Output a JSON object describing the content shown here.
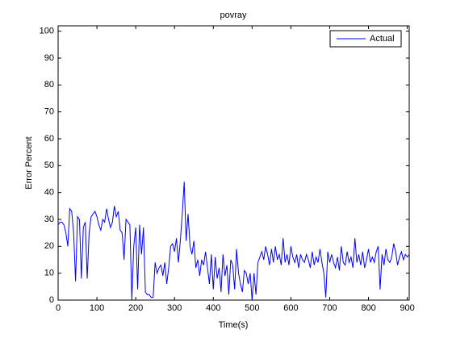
{
  "chart_data": {
    "type": "line",
    "title": "povray",
    "xlabel": "Time(s)",
    "ylabel": "Error Percent",
    "legend": "top-right",
    "xlim": [
      0,
      905
    ],
    "ylim": [
      0,
      102
    ],
    "xticks": [
      0,
      100,
      200,
      300,
      400,
      500,
      600,
      700,
      800,
      900
    ],
    "yticks": [
      0,
      10,
      20,
      30,
      40,
      50,
      60,
      70,
      80,
      90,
      100
    ],
    "x": [
      0,
      5,
      10,
      15,
      20,
      25,
      30,
      35,
      40,
      45,
      50,
      55,
      60,
      65,
      70,
      75,
      80,
      85,
      90,
      95,
      100,
      105,
      110,
      115,
      120,
      125,
      130,
      135,
      140,
      145,
      150,
      155,
      160,
      165,
      170,
      175,
      180,
      185,
      190,
      195,
      200,
      205,
      210,
      215,
      220,
      225,
      230,
      235,
      240,
      245,
      250,
      255,
      260,
      265,
      270,
      275,
      280,
      285,
      290,
      295,
      300,
      305,
      310,
      315,
      320,
      325,
      330,
      335,
      340,
      345,
      350,
      355,
      360,
      365,
      370,
      375,
      380,
      385,
      390,
      395,
      400,
      405,
      410,
      415,
      420,
      425,
      430,
      435,
      440,
      445,
      450,
      455,
      460,
      465,
      470,
      475,
      480,
      485,
      490,
      495,
      500,
      505,
      510,
      515,
      520,
      525,
      530,
      535,
      540,
      545,
      550,
      555,
      560,
      565,
      570,
      575,
      580,
      585,
      590,
      595,
      600,
      605,
      610,
      615,
      620,
      625,
      630,
      635,
      640,
      645,
      650,
      655,
      660,
      665,
      670,
      675,
      680,
      685,
      690,
      695,
      700,
      705,
      710,
      715,
      720,
      725,
      730,
      735,
      740,
      745,
      750,
      755,
      760,
      765,
      770,
      775,
      780,
      785,
      790,
      795,
      800,
      805,
      810,
      815,
      820,
      825,
      830,
      835,
      840,
      845,
      850,
      855,
      860,
      865,
      870,
      875,
      880,
      885,
      890,
      895,
      900,
      905
    ],
    "series": [
      {
        "name": "Actual",
        "color": "#0000ff",
        "values": [
          28,
          29,
          29,
          28,
          25,
          20,
          34,
          33,
          25,
          7,
          31,
          30,
          8,
          27,
          29,
          8,
          25,
          31,
          32,
          33,
          31,
          28,
          26,
          30,
          29,
          34,
          30,
          27,
          29,
          35,
          31,
          33,
          26,
          25,
          15,
          30,
          29,
          28,
          0,
          20,
          27,
          4,
          28,
          17,
          27,
          3,
          2,
          2,
          1,
          1,
          14,
          10,
          12,
          13,
          9,
          14,
          6,
          12,
          20,
          21,
          18,
          23,
          14,
          22,
          32,
          44,
          22,
          32,
          20,
          17,
          22,
          12,
          15,
          9,
          15,
          13,
          18,
          12,
          6,
          17,
          4,
          16,
          8,
          12,
          3,
          17,
          9,
          13,
          2,
          15,
          13,
          4,
          19,
          10,
          6,
          3,
          11,
          10,
          6,
          10,
          0,
          10,
          2,
          14,
          16,
          18,
          15,
          20,
          17,
          13,
          19,
          14,
          20,
          15,
          17,
          13,
          23,
          14,
          17,
          13,
          20,
          16,
          14,
          17,
          12,
          17,
          15,
          14,
          17,
          15,
          12,
          18,
          13,
          16,
          14,
          19,
          14,
          10,
          1,
          18,
          14,
          17,
          14,
          12,
          16,
          11,
          20,
          14,
          13,
          18,
          14,
          16,
          12,
          23,
          14,
          17,
          13,
          18,
          12,
          15,
          19,
          14,
          16,
          14,
          18,
          20,
          4,
          17,
          13,
          19,
          15,
          14,
          16,
          21,
          18,
          13,
          16,
          18,
          15,
          17,
          16,
          17
        ]
      }
    ]
  }
}
